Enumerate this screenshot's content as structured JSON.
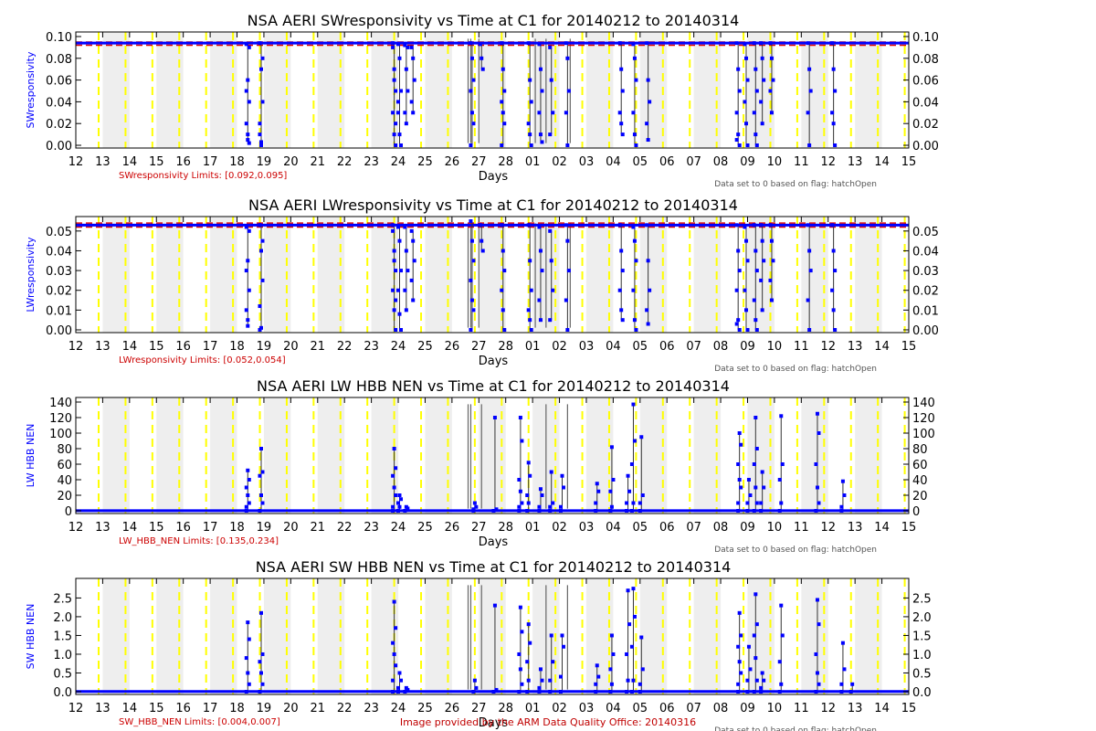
{
  "footer": "Image provided by the ARM Data Quality Office: 20140316",
  "colors": {
    "data": "#0000ff",
    "limit": "#dd0000",
    "stripe": "#eeeeee",
    "day_line": "#ffff00",
    "vline": "#000000",
    "gray_line": "#666666",
    "note": "#555555",
    "limits_text": "#cc0000"
  },
  "days": [
    "12",
    "13",
    "14",
    "15",
    "16",
    "17",
    "18",
    "19",
    "20",
    "21",
    "22",
    "23",
    "24",
    "25",
    "26",
    "27",
    "28",
    "01",
    "02",
    "03",
    "04",
    "05",
    "06",
    "07",
    "08",
    "09",
    "10",
    "11",
    "12",
    "13",
    "14",
    "15"
  ],
  "xlabel": "Days",
  "flag_note": "Data set to 0 based on flag: hatchOpen",
  "chart_data": [
    {
      "type": "scatter",
      "title": "NSA AERI SWresponsivity vs Time at C1 for 20140212 to 20140314",
      "xlabel": "Days",
      "ylabel": "SWresponsivity",
      "ylim": [
        0,
        0.1
      ],
      "yticks": [
        "0.00",
        "0.02",
        "0.04",
        "0.06",
        "0.08",
        "0.10"
      ],
      "limits_label": "SWresponsivity Limits: [0.092,0.095]",
      "limits": [
        0.092,
        0.095
      ],
      "baseline": 0.094,
      "dips": [
        {
          "x": 6.4,
          "values": [
            0.093,
            0.06,
            0.04,
            0.02,
            0.005,
            0.09,
            0.05,
            0.01,
            0.002
          ]
        },
        {
          "x": 6.9,
          "values": [
            0.094,
            0.07,
            0.04,
            0.02,
            0.003,
            0.08,
            0.01,
            0.0
          ]
        },
        {
          "x": 11.85,
          "values": [
            0.094,
            0.07,
            0.05,
            0.03,
            0.01,
            0.0,
            0.09,
            0.06,
            0.02
          ]
        },
        {
          "x": 12.05,
          "values": [
            0.093,
            0.08,
            0.05,
            0.03,
            0.01,
            0.0,
            0.04
          ]
        },
        {
          "x": 12.3,
          "values": [
            0.092,
            0.07,
            0.05,
            0.03,
            0.02,
            0.09
          ]
        },
        {
          "x": 12.55,
          "values": [
            0.09,
            0.08,
            0.06,
            0.04,
            0.03
          ]
        },
        {
          "x": 14.75,
          "values": [
            0.094,
            0.08,
            0.06,
            0.05,
            0.03,
            0.02,
            0.0
          ]
        },
        {
          "x": 15.1,
          "values": [
            0.093,
            0.08,
            0.07
          ]
        },
        {
          "x": 15.9,
          "values": [
            0.094,
            0.07,
            0.05,
            0.04,
            0.03,
            0.02,
            0.0
          ]
        },
        {
          "x": 16.9,
          "values": [
            0.094,
            0.06,
            0.04,
            0.02,
            0.01,
            0.0
          ]
        },
        {
          "x": 17.3,
          "values": [
            0.093,
            0.07,
            0.05,
            0.03,
            0.01,
            0.003
          ]
        },
        {
          "x": 17.7,
          "values": [
            0.09,
            0.06,
            0.03,
            0.01
          ]
        },
        {
          "x": 18.3,
          "values": [
            0.094,
            0.08,
            0.05,
            0.03,
            0.0
          ]
        },
        {
          "x": 20.3,
          "values": [
            0.094,
            0.07,
            0.05,
            0.03,
            0.02,
            0.01
          ]
        },
        {
          "x": 20.8,
          "values": [
            0.093,
            0.08,
            0.06,
            0.03,
            0.01,
            0.0
          ]
        },
        {
          "x": 21.3,
          "values": [
            0.094,
            0.06,
            0.04,
            0.02,
            0.005
          ]
        },
        {
          "x": 24.65,
          "values": [
            0.094,
            0.07,
            0.05,
            0.03,
            0.01,
            0.0,
            0.005
          ]
        },
        {
          "x": 24.95,
          "values": [
            0.093,
            0.08,
            0.06,
            0.04,
            0.02,
            0.0
          ]
        },
        {
          "x": 25.3,
          "values": [
            0.094,
            0.07,
            0.05,
            0.03,
            0.01,
            0.0
          ]
        },
        {
          "x": 25.55,
          "values": [
            0.094,
            0.08,
            0.06,
            0.04,
            0.02
          ]
        },
        {
          "x": 25.9,
          "values": [
            0.094,
            0.08,
            0.06,
            0.05,
            0.03
          ]
        },
        {
          "x": 27.3,
          "values": [
            0.094,
            0.07,
            0.05,
            0.03,
            0.0
          ]
        },
        {
          "x": 28.2,
          "values": [
            0.094,
            0.07,
            0.05,
            0.03,
            0.02,
            0.0
          ]
        }
      ],
      "gray_x": [
        14.6,
        14.7,
        15.0,
        17.1,
        17.5,
        18.4
      ]
    },
    {
      "type": "scatter",
      "title": "NSA AERI LWresponsivity vs Time at C1 for 20140212 to 20140314",
      "xlabel": "Days",
      "ylabel": "LWresponsivity",
      "ylim": [
        0,
        0.055
      ],
      "yticks": [
        "0.00",
        "0.01",
        "0.02",
        "0.03",
        "0.04",
        "0.05"
      ],
      "limits_label": "LWresponsivity Limits: [0.052,0.054]",
      "limits": [
        0.052,
        0.054
      ],
      "baseline": 0.053,
      "dips": [
        {
          "x": 6.4,
          "values": [
            0.052,
            0.035,
            0.02,
            0.01,
            0.002,
            0.05,
            0.03,
            0.005
          ]
        },
        {
          "x": 6.9,
          "values": [
            0.053,
            0.04,
            0.025,
            0.012,
            0.001,
            0.045,
            0.0
          ]
        },
        {
          "x": 11.85,
          "values": [
            0.053,
            0.04,
            0.03,
            0.02,
            0.01,
            0.0,
            0.05,
            0.035,
            0.015
          ]
        },
        {
          "x": 12.05,
          "values": [
            0.052,
            0.045,
            0.03,
            0.02,
            0.008,
            0.0
          ]
        },
        {
          "x": 12.3,
          "values": [
            0.052,
            0.04,
            0.03,
            0.02,
            0.01
          ]
        },
        {
          "x": 12.55,
          "values": [
            0.05,
            0.045,
            0.035,
            0.025,
            0.015
          ]
        },
        {
          "x": 14.75,
          "values": [
            0.055,
            0.045,
            0.035,
            0.025,
            0.015,
            0.01,
            0.0
          ]
        },
        {
          "x": 15.1,
          "values": [
            0.053,
            0.045,
            0.04
          ]
        },
        {
          "x": 15.9,
          "values": [
            0.053,
            0.04,
            0.03,
            0.02,
            0.01,
            0.0
          ]
        },
        {
          "x": 16.9,
          "values": [
            0.053,
            0.035,
            0.02,
            0.01,
            0.005,
            0.0
          ]
        },
        {
          "x": 17.3,
          "values": [
            0.052,
            0.04,
            0.03,
            0.015,
            0.005
          ]
        },
        {
          "x": 17.7,
          "values": [
            0.05,
            0.035,
            0.02,
            0.005
          ]
        },
        {
          "x": 18.3,
          "values": [
            0.053,
            0.045,
            0.03,
            0.015,
            0.0
          ]
        },
        {
          "x": 20.3,
          "values": [
            0.053,
            0.04,
            0.03,
            0.02,
            0.01,
            0.005
          ]
        },
        {
          "x": 20.8,
          "values": [
            0.052,
            0.045,
            0.035,
            0.02,
            0.005,
            0.0
          ]
        },
        {
          "x": 21.3,
          "values": [
            0.053,
            0.035,
            0.02,
            0.01,
            0.003
          ]
        },
        {
          "x": 24.65,
          "values": [
            0.053,
            0.04,
            0.03,
            0.02,
            0.005,
            0.0,
            0.003
          ]
        },
        {
          "x": 24.95,
          "values": [
            0.052,
            0.045,
            0.035,
            0.02,
            0.01,
            0.0
          ]
        },
        {
          "x": 25.3,
          "values": [
            0.053,
            0.04,
            0.03,
            0.015,
            0.005,
            0.0
          ]
        },
        {
          "x": 25.55,
          "values": [
            0.053,
            0.045,
            0.035,
            0.025,
            0.01
          ]
        },
        {
          "x": 25.9,
          "values": [
            0.053,
            0.045,
            0.035,
            0.025,
            0.015
          ]
        },
        {
          "x": 27.3,
          "values": [
            0.053,
            0.04,
            0.03,
            0.015,
            0.0
          ]
        },
        {
          "x": 28.2,
          "values": [
            0.053,
            0.04,
            0.03,
            0.02,
            0.01,
            0.0
          ]
        }
      ],
      "gray_x": [
        14.6,
        14.7,
        15.0,
        17.1,
        17.5,
        18.4
      ]
    },
    {
      "type": "scatter",
      "title": "NSA AERI LW HBB NEN vs Time at C1 for 20140212 to 20140314",
      "xlabel": "Days",
      "ylabel": "LW HBB NEN",
      "ylim": [
        0,
        140
      ],
      "yticks": [
        "0",
        "20",
        "40",
        "60",
        "80",
        "100",
        "120",
        "140"
      ],
      "limits_label": "LW_HBB_NEN Limits: [0.135,0.234]",
      "limits": [
        0.135,
        0.234
      ],
      "baseline": 0.2,
      "dips": [
        {
          "x": 6.4,
          "values": [
            0,
            52,
            40,
            30,
            20,
            10,
            5
          ]
        },
        {
          "x": 6.9,
          "values": [
            0,
            80,
            50,
            45,
            20,
            10
          ]
        },
        {
          "x": 11.85,
          "values": [
            0,
            80,
            55,
            45,
            30,
            20,
            5
          ]
        },
        {
          "x": 12.05,
          "values": [
            0,
            20,
            15,
            10,
            5
          ]
        },
        {
          "x": 12.3,
          "values": [
            0,
            5,
            3
          ]
        },
        {
          "x": 14.85,
          "values": [
            0,
            10,
            5,
            2
          ]
        },
        {
          "x": 15.6,
          "values": [
            0,
            120,
            2
          ]
        },
        {
          "x": 16.55,
          "values": [
            0,
            120,
            90,
            40,
            25,
            10,
            5
          ]
        },
        {
          "x": 16.85,
          "values": [
            0,
            62,
            45,
            20,
            10
          ]
        },
        {
          "x": 17.3,
          "values": [
            0,
            28,
            20,
            5
          ]
        },
        {
          "x": 17.7,
          "values": [
            0,
            50,
            10,
            5
          ]
        },
        {
          "x": 18.1,
          "values": [
            0,
            45,
            30,
            5
          ]
        },
        {
          "x": 19.4,
          "values": [
            0,
            35,
            25,
            10
          ]
        },
        {
          "x": 19.95,
          "values": [
            0,
            82,
            40,
            25,
            5
          ]
        },
        {
          "x": 20.55,
          "values": [
            0,
            45,
            25,
            10
          ]
        },
        {
          "x": 20.75,
          "values": [
            0,
            137,
            90,
            60,
            10
          ]
        },
        {
          "x": 21.05,
          "values": [
            0,
            95,
            20,
            10
          ]
        },
        {
          "x": 24.7,
          "values": [
            0,
            100,
            85,
            60,
            40,
            30,
            10
          ]
        },
        {
          "x": 25.05,
          "values": [
            0,
            40,
            20,
            10
          ]
        },
        {
          "x": 25.3,
          "values": [
            0,
            120,
            80,
            60,
            30,
            10
          ]
        },
        {
          "x": 25.55,
          "values": [
            0,
            50,
            30,
            10
          ]
        },
        {
          "x": 26.25,
          "values": [
            0,
            122,
            60,
            40,
            10
          ]
        },
        {
          "x": 27.6,
          "values": [
            0,
            125,
            100,
            60,
            30,
            10
          ]
        },
        {
          "x": 28.55,
          "values": [
            0,
            38,
            20,
            5
          ]
        }
      ],
      "gray_x": [
        14.6,
        14.7,
        15.1,
        17.5,
        18.3
      ]
    },
    {
      "type": "scatter",
      "title": "NSA AERI SW HBB NEN vs Time at C1 for 20140212 to 20140314",
      "xlabel": "Days",
      "ylabel": "SW HBB NEN",
      "ylim": [
        0,
        2.9
      ],
      "yticks": [
        "0.0",
        "0.5",
        "1.0",
        "1.5",
        "2.0",
        "2.5"
      ],
      "limits_label": "SW_HBB_NEN Limits: [0.004,0.007]",
      "limits": [
        0.004,
        0.007
      ],
      "baseline": 0.006,
      "dips": [
        {
          "x": 6.4,
          "values": [
            0,
            1.85,
            1.4,
            0.9,
            0.5,
            0.2
          ]
        },
        {
          "x": 6.9,
          "values": [
            0,
            2.1,
            1.0,
            0.8,
            0.5,
            0.2
          ]
        },
        {
          "x": 11.85,
          "values": [
            0,
            2.4,
            1.7,
            1.3,
            1.0,
            0.7,
            0.3
          ]
        },
        {
          "x": 12.05,
          "values": [
            0,
            0.5,
            0.3,
            0.1
          ]
        },
        {
          "x": 12.3,
          "values": [
            0,
            0.1,
            0.05
          ]
        },
        {
          "x": 14.85,
          "values": [
            0,
            0.3,
            0.1
          ]
        },
        {
          "x": 15.6,
          "values": [
            0,
            2.3,
            0.05
          ]
        },
        {
          "x": 16.55,
          "values": [
            0,
            2.25,
            1.6,
            1.0,
            0.6,
            0.2
          ]
        },
        {
          "x": 16.85,
          "values": [
            0,
            1.8,
            1.3,
            0.8,
            0.3
          ]
        },
        {
          "x": 17.3,
          "values": [
            0,
            0.6,
            0.3,
            0.1
          ]
        },
        {
          "x": 17.7,
          "values": [
            0,
            1.5,
            0.8,
            0.3
          ]
        },
        {
          "x": 18.1,
          "values": [
            0,
            1.5,
            1.2,
            0.4
          ]
        },
        {
          "x": 19.4,
          "values": [
            0,
            0.7,
            0.4,
            0.2
          ]
        },
        {
          "x": 19.95,
          "values": [
            0,
            1.5,
            1.0,
            0.6,
            0.2
          ]
        },
        {
          "x": 20.55,
          "values": [
            0,
            2.7,
            1.8,
            1.0,
            0.3
          ]
        },
        {
          "x": 20.75,
          "values": [
            0,
            2.75,
            2.0,
            1.2,
            0.3
          ]
        },
        {
          "x": 21.05,
          "values": [
            0,
            1.45,
            0.6,
            0.2
          ]
        },
        {
          "x": 24.7,
          "values": [
            0,
            2.1,
            1.5,
            1.2,
            0.8,
            0.5,
            0.2
          ]
        },
        {
          "x": 25.05,
          "values": [
            0,
            1.2,
            0.6,
            0.3
          ]
        },
        {
          "x": 25.3,
          "values": [
            0,
            2.6,
            1.8,
            1.5,
            0.9,
            0.3
          ]
        },
        {
          "x": 25.55,
          "values": [
            0,
            0.5,
            0.3,
            0.1
          ]
        },
        {
          "x": 26.25,
          "values": [
            0,
            2.3,
            1.5,
            0.8,
            0.2
          ]
        },
        {
          "x": 27.6,
          "values": [
            0,
            2.45,
            1.8,
            1.0,
            0.5,
            0.2
          ]
        },
        {
          "x": 28.55,
          "values": [
            0,
            1.3,
            0.6,
            0.2
          ]
        },
        {
          "x": 28.9,
          "values": [
            0,
            0.2
          ]
        }
      ],
      "gray_x": [
        14.6,
        14.7,
        15.1,
        17.5,
        18.3
      ]
    }
  ]
}
